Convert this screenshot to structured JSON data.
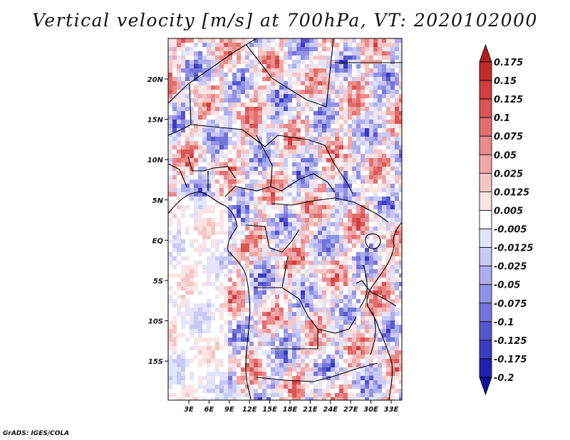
{
  "title": "Vertical velocity [m/s] at 700hPa, VT: 2020102000",
  "credit": "GrADS: IGES/COLA",
  "map": {
    "variable": "Vertical velocity",
    "units": "m/s",
    "level": "700hPa",
    "valid_time": "2020102000",
    "lon_ticks": [
      "3E",
      "6E",
      "9E",
      "12E",
      "15E",
      "18E",
      "21E",
      "24E",
      "27E",
      "30E",
      "33E"
    ],
    "lat_ticks": [
      "20N",
      "15N",
      "10N",
      "5N",
      "EQ",
      "5S",
      "10S",
      "15S"
    ]
  },
  "colorbar": {
    "levels": [
      "0.175",
      "0.15",
      "0.125",
      "0.1",
      "0.075",
      "0.05",
      "0.025",
      "0.0125",
      "0.005",
      "-0.005",
      "-0.0125",
      "-0.025",
      "-0.05",
      "-0.075",
      "-0.1",
      "-0.125",
      "-0.175",
      "-0.2"
    ],
    "colors": [
      "#b11d1d",
      "#c22b2b",
      "#d03e3e",
      "#dc5454",
      "#e46e6e",
      "#ea8a8a",
      "#f0a7a7",
      "#f6c6c6",
      "#fbe4e4",
      "#ffffff",
      "#e3e3fb",
      "#c9c9f5",
      "#aeaeef",
      "#9191e6",
      "#7474dc",
      "#5656cf",
      "#3a3ac2",
      "#2020b0",
      "#10109a"
    ]
  }
}
